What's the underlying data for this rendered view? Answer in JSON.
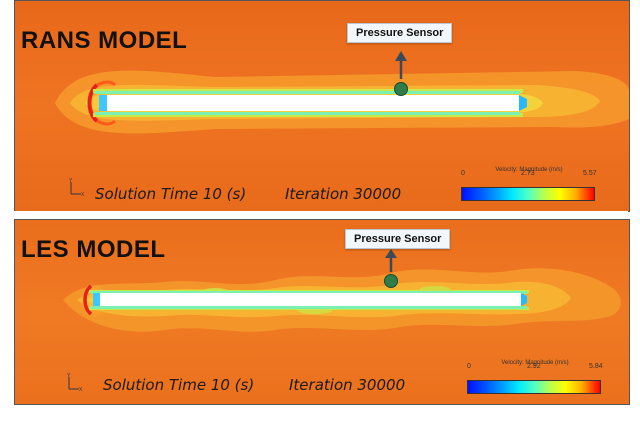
{
  "panels": [
    {
      "title": "RANS MODEL",
      "sensor_label": "Pressure Sensor",
      "solution_time": "Solution Time 10 (s)",
      "iteration": "Iteration 30000",
      "legend": {
        "title": "Velocity: Magnitude (m/s)",
        "min": "0",
        "mid": "2.73",
        "max": "5.57"
      }
    },
    {
      "title": "LES MODEL",
      "sensor_label": "Pressure Sensor",
      "solution_time": "Solution Time 10 (s)",
      "iteration": "Iteration 30000",
      "legend": {
        "title": "Velocity: Magnitude (m/s)",
        "min": "0",
        "mid": "2.92",
        "max": "5.84"
      }
    }
  ],
  "colors": {
    "background_field": "#f0741f",
    "wake_field": "#f7a830",
    "cylinder": "#ffffff",
    "sensor": "#2e7d4a",
    "arrow": "#3a4a5a"
  }
}
